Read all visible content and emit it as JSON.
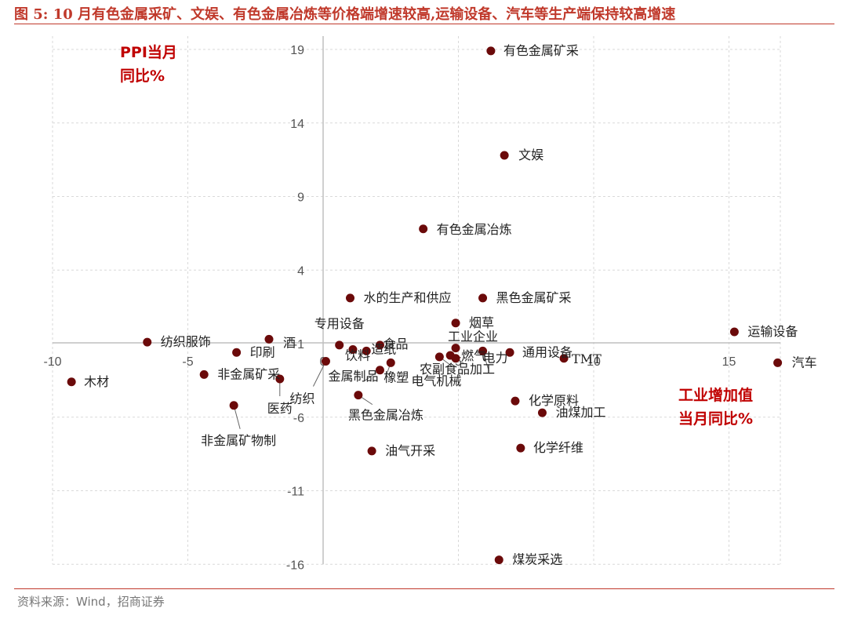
{
  "figure": {
    "title": "图 5:  10 月有色金属采矿、文娱、有色金属冶炼等价格端增速较高,运输设备、汽车等生产端保持较高增速",
    "source": "资料来源：Wind，招商证券",
    "accent_color": "#c0392b"
  },
  "chart_data": {
    "type": "scatter",
    "title": "",
    "xlabel_lines": [
      "工业增加值",
      "当月同比%"
    ],
    "ylabel_lines": [
      "PPI当月",
      "同比%"
    ],
    "xlim": [
      -10,
      17
    ],
    "ylim": [
      -16,
      20
    ],
    "xticks": [
      -10,
      -5,
      0,
      5,
      10,
      15
    ],
    "xtick_labels": [
      "-10",
      "-5",
      "0",
      "5",
      "10",
      "15"
    ],
    "yticks": [
      19,
      14,
      9,
      4,
      -1,
      -6,
      -11,
      -16
    ],
    "ytick_labels": [
      "19",
      "14",
      "9",
      "4",
      "-1",
      "-6",
      "-11",
      "-16"
    ],
    "grid": true,
    "marker_color": "#6b0a0a",
    "axis_title_color": "#c00000",
    "points": [
      {
        "name": "有色金属矿采",
        "x": 6.2,
        "y": 18.9
      },
      {
        "name": "文娱",
        "x": 6.7,
        "y": 11.8
      },
      {
        "name": "有色金属冶炼",
        "x": 3.7,
        "y": 6.8
      },
      {
        "name": "水的生产和供应",
        "x": 1.0,
        "y": 2.1
      },
      {
        "name": "黑色金属矿采",
        "x": 5.9,
        "y": 2.1
      },
      {
        "name": "烟草",
        "x": 4.9,
        "y": 0.4
      },
      {
        "name": "运输设备",
        "x": 15.2,
        "y": -0.2
      },
      {
        "name": "汽车",
        "x": 16.8,
        "y": -2.3
      },
      {
        "name": "纺织服饰",
        "x": -6.5,
        "y": -0.9
      },
      {
        "name": "酒",
        "x": -2.0,
        "y": -0.7
      },
      {
        "name": "专用设备",
        "x": 0.6,
        "y": -1.1
      },
      {
        "name": "饮料",
        "x": 1.1,
        "y": -1.4
      },
      {
        "name": "造纸",
        "x": 1.6,
        "y": -1.5
      },
      {
        "name": "食品",
        "x": 2.1,
        "y": -1.1
      },
      {
        "name": "工业企业",
        "x": 4.9,
        "y": -1.3
      },
      {
        "name": "燃气",
        "x": 4.7,
        "y": -1.8
      },
      {
        "name": "电力",
        "x": 5.9,
        "y": -1.5
      },
      {
        "name": "农副食品加工",
        "x": 4.9,
        "y": -2.0
      },
      {
        "name": "通用设备",
        "x": 6.9,
        "y": -1.6
      },
      {
        "name": "TMT",
        "x": 8.9,
        "y": -2.0
      },
      {
        "name": "印刷",
        "x": -3.2,
        "y": -1.6
      },
      {
        "name": "非金属矿采",
        "x": -4.4,
        "y": -3.1
      },
      {
        "name": "医药",
        "x": -1.6,
        "y": -3.4
      },
      {
        "name": "纺织",
        "x": 0.1,
        "y": -2.2
      },
      {
        "name": "金属制品",
        "x": 2.1,
        "y": -2.8
      },
      {
        "name": "橡塑",
        "x": 2.5,
        "y": -2.3
      },
      {
        "name": "电气机械",
        "x": 4.3,
        "y": -1.9
      },
      {
        "name": "木材",
        "x": -9.3,
        "y": -3.6
      },
      {
        "name": "黑色金属冶炼",
        "x": 1.3,
        "y": -4.5
      },
      {
        "name": "化学原料",
        "x": 7.1,
        "y": -4.9
      },
      {
        "name": "油煤加工",
        "x": 8.1,
        "y": -5.7
      },
      {
        "name": "非金属矿物制",
        "x": -3.3,
        "y": -5.2
      },
      {
        "name": "油气开采",
        "x": 1.8,
        "y": -8.3
      },
      {
        "name": "化学纤维",
        "x": 7.3,
        "y": -8.1
      },
      {
        "name": "煤炭采选",
        "x": 6.5,
        "y": -15.7
      }
    ]
  }
}
